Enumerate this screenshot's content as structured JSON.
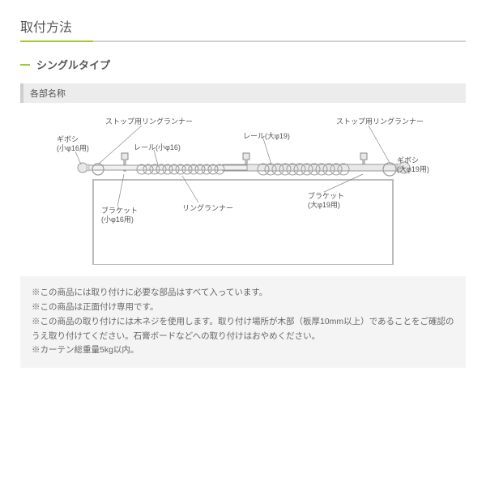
{
  "title": "取付方法",
  "subtitle": "シングルタイプ",
  "section_header": "各部名称",
  "labels": {
    "stopring_l": "ストップ用リングランナー",
    "stopring_r": "ストップ用リングランナー",
    "giboshi_l": "ギボシ\n(小φ16用)",
    "giboshi_r": "ギボシ\n(大φ19用)",
    "rail_l": "レール(小φ16)",
    "rail_r": "レール(大φ19)",
    "bracket_l": "ブラケット\n(小φ16用)",
    "bracket_r": "ブラケット\n(大φ19用)",
    "ringrunner": "リングランナー"
  },
  "notes": [
    "※この商品には取り付けに必要な部品はすべて入っています。",
    "※この商品は正面付け専用です。",
    "※この商品の取り付けには木ネジを使用します。取り付け場所が木部（板厚10mm以上）であることをご確認のうえ取り付けてください。石膏ボードなどへの取り付けはおやめください。",
    "※カーテン総重量5kg以内。"
  ],
  "colors": {
    "accent": "#9acd32",
    "text": "#555555",
    "note_bg": "#f4f4f4",
    "note_text": "#666666",
    "bar_bg": "#ececec",
    "bar_border": "#cfcfcf",
    "line": "#888888",
    "rail_fill": "#e8e8e8",
    "rail_stroke": "#999999"
  }
}
